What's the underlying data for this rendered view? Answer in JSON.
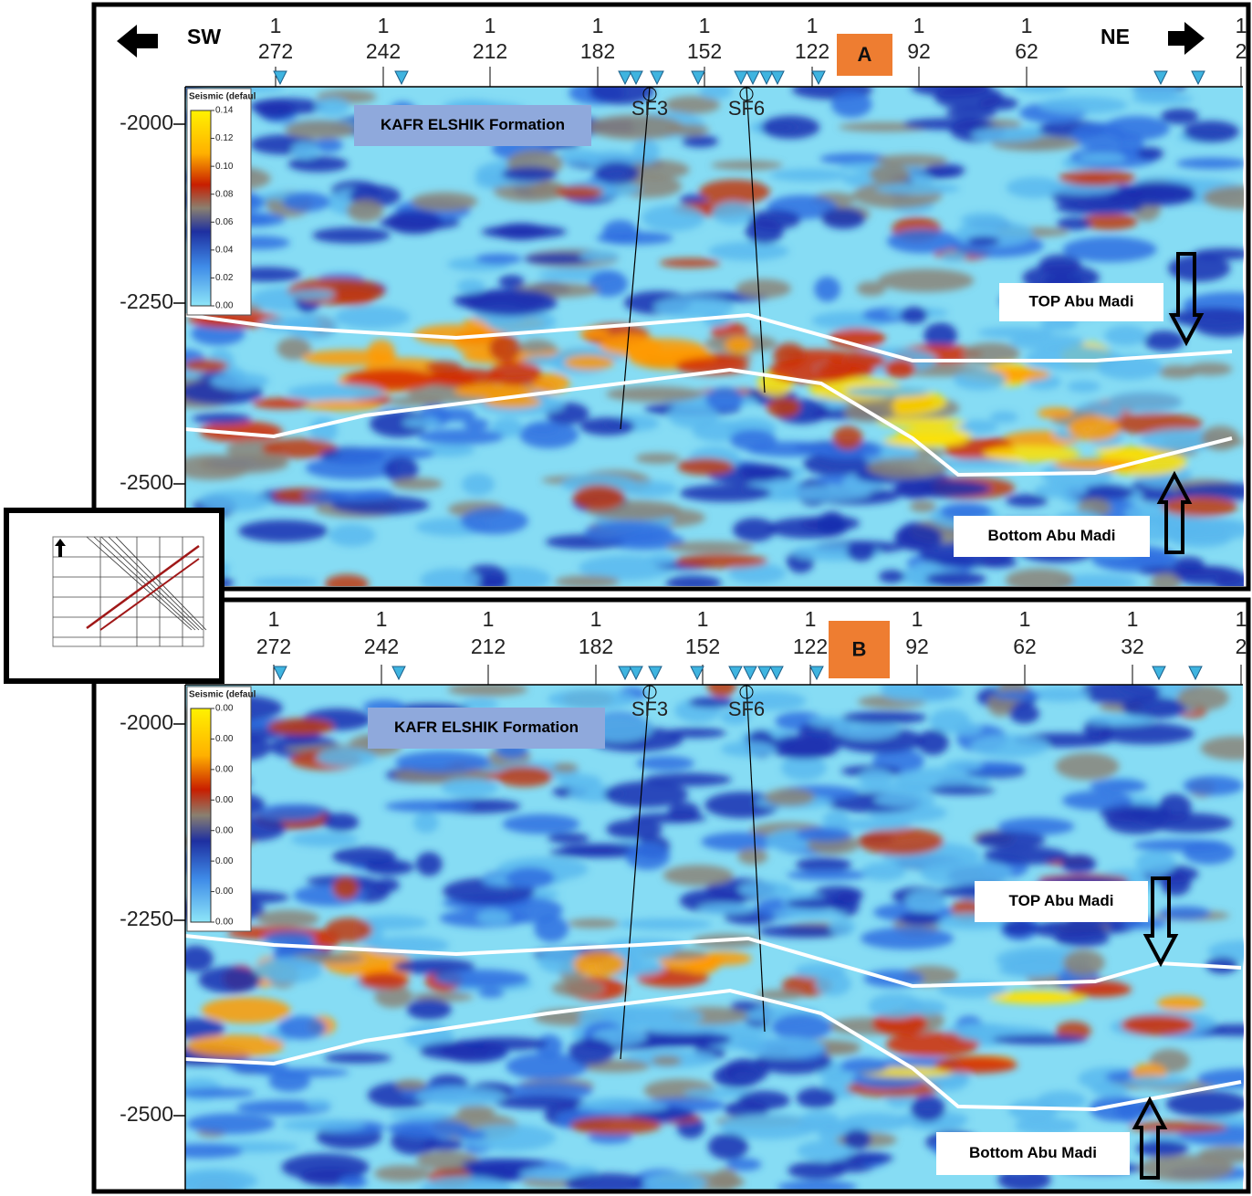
{
  "panels": [
    {
      "label": "A",
      "direction_left": "SW",
      "direction_right": "NE",
      "x_ticks": [
        {
          "top": "1",
          "bottom": "272"
        },
        {
          "top": "1",
          "bottom": "242"
        },
        {
          "top": "1",
          "bottom": "212"
        },
        {
          "top": "1",
          "bottom": "182"
        },
        {
          "top": "1",
          "bottom": "152"
        },
        {
          "top": "1",
          "bottom": "122"
        },
        {
          "top": "1",
          "bottom": "92"
        },
        {
          "top": "1",
          "bottom": "62"
        },
        {
          "top": "1",
          "bottom": "2"
        }
      ],
      "y_ticks": [
        "-2000",
        "-2250",
        "-2500"
      ],
      "colorbar": {
        "title": "Seismic (defaul",
        "ticks": [
          "0.14",
          "0.12",
          "0.10",
          "0.08",
          "0.06",
          "0.04",
          "0.02",
          "0.00"
        ]
      },
      "wells": [
        "SF3",
        "SF6"
      ],
      "annotations": {
        "formation": "KAFR ELSHIK Formation",
        "top": "TOP Abu Madi",
        "bottom": "Bottom Abu Madi"
      }
    },
    {
      "label": "B",
      "x_ticks": [
        {
          "top": "1",
          "bottom": "272"
        },
        {
          "top": "1",
          "bottom": "242"
        },
        {
          "top": "1",
          "bottom": "212"
        },
        {
          "top": "1",
          "bottom": "182"
        },
        {
          "top": "1",
          "bottom": "152"
        },
        {
          "top": "1",
          "bottom": "122"
        },
        {
          "top": "1",
          "bottom": "92"
        },
        {
          "top": "1",
          "bottom": "62"
        },
        {
          "top": "1",
          "bottom": "32"
        },
        {
          "top": "1",
          "bottom": "2"
        }
      ],
      "y_ticks": [
        "-2000",
        "-2250",
        "-2500"
      ],
      "colorbar": {
        "title": "Seismic (defaul",
        "ticks": [
          "0.00",
          "0.00",
          "0.00",
          "0.00",
          "0.00",
          "0.00",
          "0.00",
          "0.00"
        ]
      },
      "wells": [
        "SF3",
        "SF6"
      ],
      "annotations": {
        "formation": "KAFR ELSHIK Formation",
        "top": "TOP Abu Madi",
        "bottom": "Bottom Abu Madi"
      }
    }
  ]
}
